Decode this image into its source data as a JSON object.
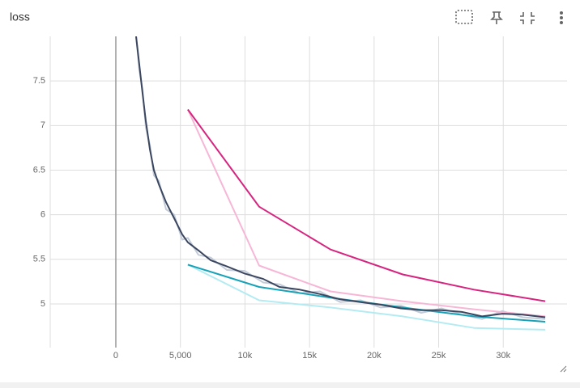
{
  "chart_data": {
    "type": "line",
    "title": "loss",
    "xlim": [
      -5080,
      34940
    ],
    "xticks": [
      0,
      {
        "value": 5000,
        "label": "5,000"
      },
      {
        "value": 10000,
        "label": "10k"
      },
      {
        "value": 15000,
        "label": "15k"
      },
      {
        "value": 20000,
        "label": "20k"
      },
      {
        "value": 25000,
        "label": "25k"
      },
      {
        "value": 30000,
        "label": "30k"
      }
    ],
    "ylim": [
      4.51,
      8.0
    ],
    "yticks": [
      5,
      5.5,
      6,
      6.5,
      7,
      7.5
    ],
    "grid": true,
    "series": [
      {
        "color": "#c3ccd8",
        "width": 2,
        "x": [
          1570,
          1820,
          2070,
          2320,
          2640,
          2950,
          3330,
          3890,
          4520,
          5140,
          5580,
          6400,
          7340,
          8600,
          9980,
          11420,
          12670,
          14240,
          15810,
          17380,
          18950,
          20520,
          22080,
          23650,
          25220,
          26790,
          28360,
          29930,
          31500,
          33250
        ],
        "values": [
          8.0,
          7.62,
          7.4,
          6.98,
          6.78,
          6.44,
          6.38,
          6.06,
          6.0,
          5.72,
          5.74,
          5.55,
          5.52,
          5.38,
          5.37,
          5.24,
          5.22,
          5.12,
          5.14,
          5.02,
          5.04,
          4.96,
          4.98,
          4.9,
          4.95,
          4.88,
          4.83,
          4.92,
          4.85,
          4.83
        ]
      },
      {
        "color": "#f7b6d6",
        "width": 2,
        "x": [
          5580,
          11100,
          16630,
          22210,
          27730,
          33250
        ],
        "values": [
          7.18,
          5.43,
          5.14,
          5.03,
          4.94,
          4.86
        ]
      },
      {
        "color": "#b3ebf2",
        "width": 2,
        "x": [
          5580,
          11100,
          16630,
          22210,
          27730,
          33250
        ],
        "values": [
          5.44,
          5.04,
          4.96,
          4.86,
          4.73,
          4.71
        ]
      },
      {
        "color": "#d6247f",
        "width": 2,
        "x": [
          5580,
          11100,
          16630,
          22210,
          27730,
          33250
        ],
        "values": [
          7.18,
          6.09,
          5.61,
          5.33,
          5.16,
          5.03
        ]
      },
      {
        "color": "#17a2b8",
        "width": 2,
        "x": [
          5580,
          11100,
          16630,
          22210,
          27730,
          33250
        ],
        "values": [
          5.44,
          5.19,
          5.07,
          4.96,
          4.86,
          4.8
        ]
      },
      {
        "color": "#3b4760",
        "width": 2,
        "x": [
          1570,
          1820,
          2070,
          2320,
          2640,
          2950,
          3330,
          3890,
          4520,
          5140,
          5580,
          6400,
          7340,
          8600,
          9980,
          11420,
          12670,
          14240,
          15810,
          17380,
          18950,
          20520,
          22080,
          23650,
          25220,
          26790,
          28360,
          29930,
          31500,
          33250
        ],
        "values": [
          8.0,
          7.68,
          7.36,
          7.05,
          6.73,
          6.5,
          6.34,
          6.14,
          5.96,
          5.78,
          5.69,
          5.6,
          5.49,
          5.42,
          5.34,
          5.28,
          5.19,
          5.16,
          5.11,
          5.05,
          5.02,
          4.99,
          4.95,
          4.93,
          4.93,
          4.91,
          4.86,
          4.89,
          4.88,
          4.85
        ]
      }
    ]
  }
}
